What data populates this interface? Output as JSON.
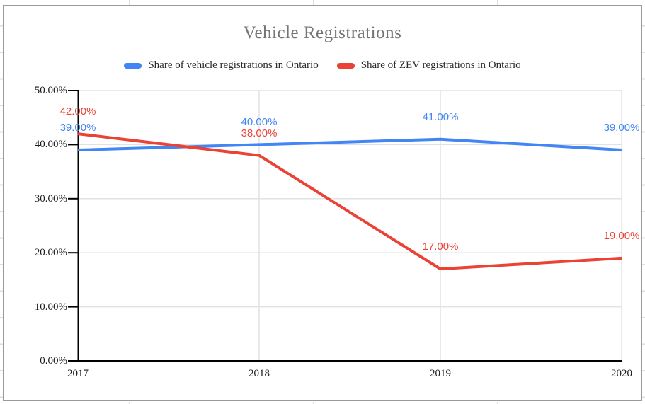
{
  "chart": {
    "title": "Vehicle Registrations",
    "legend": [
      {
        "label": "Share of vehicle registrations in Ontario",
        "color": "#4285f4"
      },
      {
        "label": "Share of ZEV registrations in Ontario",
        "color": "#ea4335"
      }
    ]
  },
  "chart_data": {
    "type": "line",
    "title": "Vehicle Registrations",
    "categories": [
      "2017",
      "2018",
      "2019",
      "2020"
    ],
    "series": [
      {
        "name": "Share of vehicle registrations in Ontario",
        "color": "#4285f4",
        "values": [
          39,
          40,
          41,
          39
        ],
        "labels": [
          "39.00%",
          "40.00%",
          "41.00%",
          "39.00%"
        ]
      },
      {
        "name": "Share of ZEV registrations in Ontario",
        "color": "#ea4335",
        "values": [
          42,
          38,
          17,
          19
        ],
        "labels": [
          "42.00%",
          "38.00%",
          "17.00%",
          "19.00%"
        ]
      }
    ],
    "xlabel": "",
    "ylabel": "",
    "ylim": [
      0,
      50
    ],
    "y_tick_step": 10,
    "y_tick_labels": [
      "0.00%",
      "10.00%",
      "20.00%",
      "30.00%",
      "40.00%",
      "50.00%"
    ],
    "grid": true,
    "legend_position": "top",
    "data_labels_shown": true
  }
}
